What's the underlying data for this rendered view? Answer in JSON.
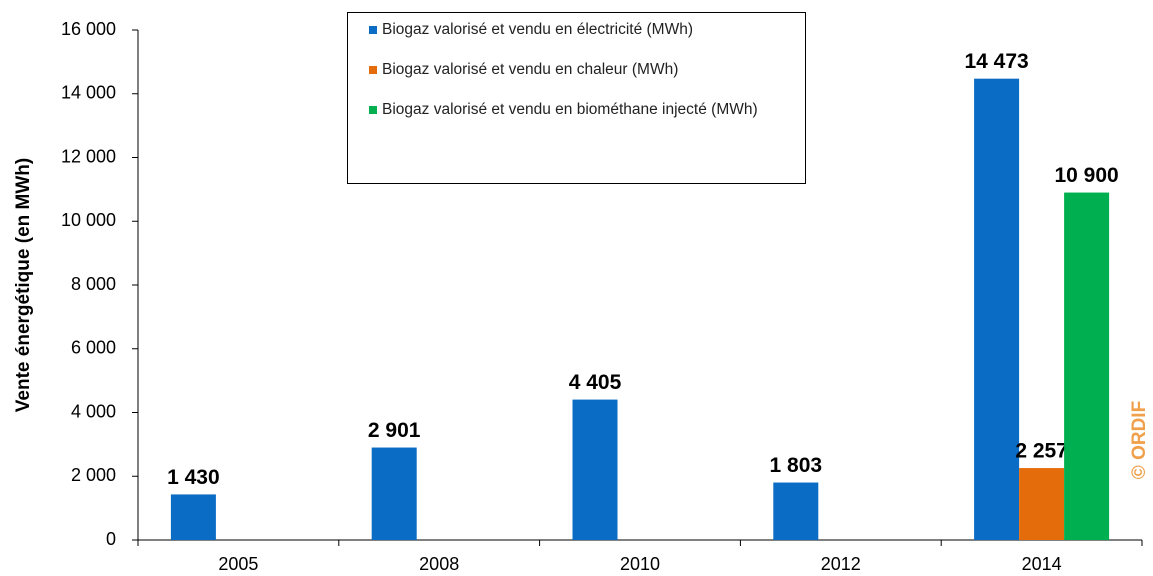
{
  "chart_data": {
    "type": "bar",
    "y_label": "Vente énergétique (en MWh)",
    "annotation": "© ORDIF",
    "categories": [
      "2005",
      "2008",
      "2010",
      "2012",
      "2014"
    ],
    "series": [
      {
        "name": "Biogaz valorisé et vendu en électricité (MWh)",
        "color": "#0a6cc4",
        "values": [
          1430,
          2901,
          4405,
          1803,
          14473
        ],
        "value_labels": [
          "1 430",
          "2 901",
          "4 405",
          "1 803",
          "14 473"
        ]
      },
      {
        "name": "Biogaz valorisé et vendu en chaleur (MWh)",
        "color": "#e46c0a",
        "values": [
          null,
          null,
          null,
          null,
          2257
        ],
        "value_labels": [
          null,
          null,
          null,
          null,
          "2 257"
        ]
      },
      {
        "name": "Biogaz valorisé et vendu en biométhane injecté (MWh)",
        "color": "#00b050",
        "values": [
          null,
          null,
          null,
          null,
          10900
        ],
        "value_labels": [
          null,
          null,
          null,
          null,
          "10 900"
        ]
      }
    ],
    "ylim": [
      0,
      16000
    ],
    "yticks": [
      0,
      {
        "value": 2000,
        "label": "2 000"
      },
      {
        "value": 4000,
        "label": "4 000"
      },
      {
        "value": 6000,
        "label": "6 000"
      },
      {
        "value": 8000,
        "label": "8 000"
      },
      {
        "value": 10000,
        "label": "10 000"
      },
      {
        "value": 12000,
        "label": "12 000"
      },
      {
        "value": 14000,
        "label": "14 000"
      },
      {
        "value": 16000,
        "label": "16 000"
      }
    ],
    "legend": "top-center"
  }
}
